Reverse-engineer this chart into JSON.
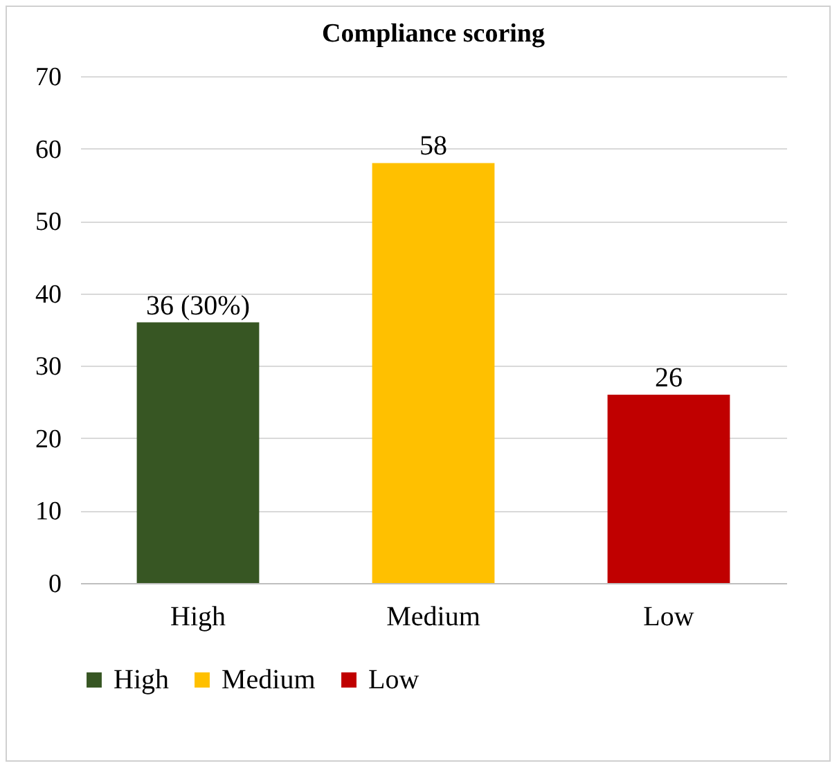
{
  "chart_data": {
    "type": "bar",
    "title": "Compliance scoring",
    "categories": [
      "High",
      "Medium",
      "Low"
    ],
    "series": [
      {
        "name": "High",
        "color": "#375623",
        "values": [
          36,
          null,
          null
        ],
        "value_labels": [
          "36 (30%)",
          null,
          null
        ]
      },
      {
        "name": "Medium",
        "color": "#ffc000",
        "values": [
          null,
          58,
          null
        ],
        "value_labels": [
          null,
          "58",
          null
        ]
      },
      {
        "name": "Low",
        "color": "#c00000",
        "values": [
          null,
          null,
          26
        ],
        "value_labels": [
          null,
          null,
          "26"
        ]
      }
    ],
    "ylim": [
      0,
      70
    ],
    "yticks": [
      0,
      10,
      20,
      30,
      40,
      50,
      60,
      70
    ],
    "grid": "y",
    "legend": "bottom"
  }
}
